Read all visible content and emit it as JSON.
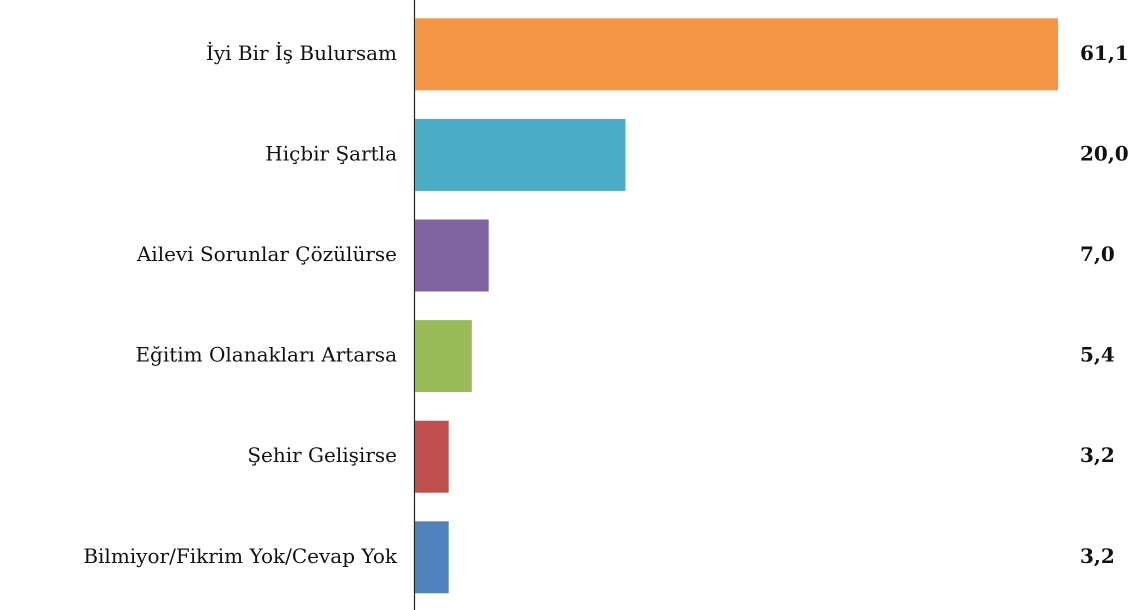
{
  "chart_data": {
    "type": "barh",
    "categories": [
      "İyi Bir İş Bulursam",
      "Hiçbir Şartla",
      "Ailevi Sorunlar Çözülürse",
      "Eğitim Olanakları Artarsa",
      "Şehir Gelişirse",
      "Bilmiyor/Fikrim Yok/Cevap Yok"
    ],
    "values": [
      61.1,
      20.0,
      7.0,
      5.4,
      3.2,
      3.2
    ],
    "value_labels": [
      "61,1",
      "20,0",
      "7,0",
      "5,4",
      "3,2",
      "3,2"
    ],
    "colors": [
      "#f59646",
      "#4bacc6",
      "#8064a2",
      "#9bbb59",
      "#c0504d",
      "#4f81bd"
    ]
  }
}
